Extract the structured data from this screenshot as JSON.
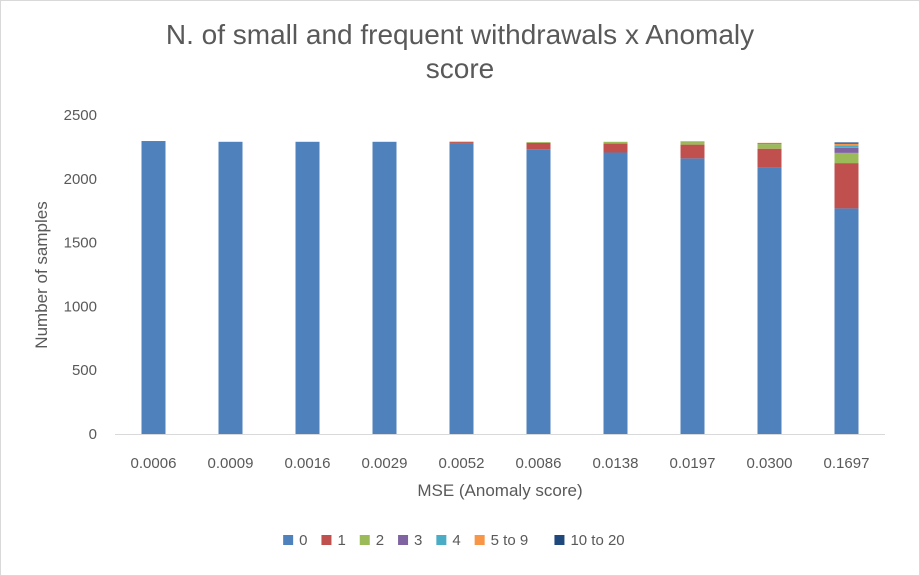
{
  "chart_data": {
    "type": "bar",
    "stacked": true,
    "title_line1": "N. of small and frequent withdrawals x Anomaly",
    "title_line2": "score",
    "xlabel": "MSE (Anomaly score)",
    "ylabel": "Number of samples",
    "ylim": [
      0,
      2500
    ],
    "yticks": [
      "0",
      "500",
      "1000",
      "1500",
      "2000",
      "2500"
    ],
    "ytick_values": [
      0,
      500,
      1000,
      1500,
      2000,
      2500
    ],
    "grid": false,
    "legend_position": "bottom",
    "categories": [
      "0.0006",
      "0.0009",
      "0.0016",
      "0.0029",
      "0.0052",
      "0.0086",
      "0.0138",
      "0.0197",
      "0.0300",
      "0.1697"
    ],
    "series": [
      {
        "name": "0",
        "color": "#4f81bd",
        "values": [
          2296,
          2290,
          2290,
          2290,
          2280,
          2232,
          2206,
          2160,
          2086,
          1768
        ]
      },
      {
        "name": "1",
        "color": "#c0504d",
        "values": [
          0,
          0,
          0,
          0,
          8,
          50,
          70,
          108,
          150,
          355
        ]
      },
      {
        "name": "2",
        "color": "#9bbb59",
        "values": [
          0,
          0,
          0,
          0,
          4,
          6,
          14,
          22,
          36,
          80
        ]
      },
      {
        "name": "3",
        "color": "#8064a2",
        "values": [
          0,
          0,
          0,
          0,
          0,
          0,
          0,
          2,
          6,
          40
        ]
      },
      {
        "name": "4",
        "color": "#4bacc6",
        "values": [
          0,
          0,
          0,
          0,
          0,
          0,
          0,
          0,
          2,
          20
        ]
      },
      {
        "name": "5 to 9",
        "color": "#f79646",
        "values": [
          0,
          0,
          0,
          0,
          0,
          0,
          0,
          0,
          2,
          12
        ]
      },
      {
        "name": "10 to 20",
        "color": "#1f497d",
        "values": [
          0,
          0,
          0,
          0,
          0,
          0,
          0,
          0,
          0,
          10
        ]
      }
    ]
  }
}
